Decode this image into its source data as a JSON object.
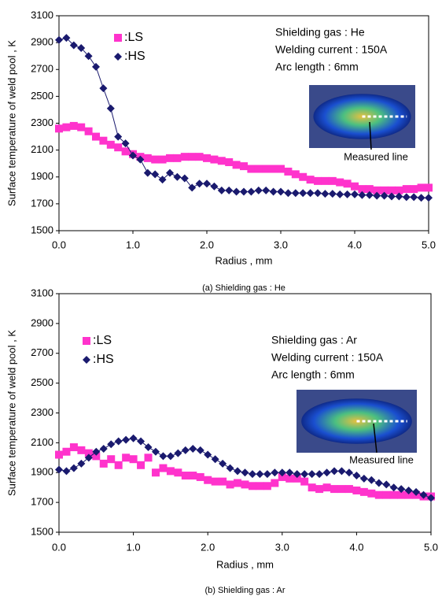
{
  "chart_data": [
    {
      "type": "scatter",
      "x_label": "Radius , mm",
      "y_label": "Surface temperature of weld pool , K",
      "caption": "(a) Shielding gas : He",
      "annotations": [
        "Shielding gas : He",
        "Welding current : 150A",
        "Arc length : 6mm"
      ],
      "inset_label": "Measured line",
      "legend": "upper left",
      "xlim": [
        0,
        5
      ],
      "ylim": [
        1500,
        3100
      ],
      "xticks": [
        {
          "value": 0,
          "label": "0.0"
        },
        {
          "value": 1,
          "label": "1.0"
        },
        {
          "value": 2,
          "label": "2.0"
        },
        {
          "value": 3,
          "label": "3.0"
        },
        {
          "value": 4,
          "label": "4.0"
        },
        {
          "value": 5,
          "label": "5.0"
        }
      ],
      "yticks": [
        1500,
        1700,
        1900,
        2100,
        2300,
        2500,
        2700,
        2900,
        3100
      ],
      "x": [
        0,
        0.1,
        0.2,
        0.3,
        0.4,
        0.5,
        0.6,
        0.7,
        0.8,
        0.9,
        1,
        1.1,
        1.2,
        1.3,
        1.4,
        1.5,
        1.6,
        1.7,
        1.8,
        1.9,
        2,
        2.1,
        2.2,
        2.3,
        2.4,
        2.5,
        2.6,
        2.7,
        2.8,
        2.9,
        3,
        3.1,
        3.2,
        3.3,
        3.4,
        3.5,
        3.6,
        3.7,
        3.8,
        3.9,
        4,
        4.1,
        4.2,
        4.3,
        4.4,
        4.5,
        4.6,
        4.7,
        4.8,
        4.9,
        5
      ],
      "series": [
        {
          "name": ":LS",
          "color": "#ff33cc",
          "marker": "square",
          "connect": false,
          "values": [
            2260,
            2270,
            2280,
            2270,
            2240,
            2200,
            2170,
            2140,
            2120,
            2090,
            2070,
            2050,
            2040,
            2030,
            2030,
            2040,
            2040,
            2050,
            2050,
            2050,
            2040,
            2030,
            2020,
            2010,
            1990,
            1980,
            1960,
            1960,
            1960,
            1960,
            1960,
            1940,
            1920,
            1900,
            1880,
            1870,
            1870,
            1870,
            1860,
            1850,
            1830,
            1810,
            1810,
            1800,
            1800,
            1800,
            1800,
            1810,
            1810,
            1820,
            1820
          ]
        },
        {
          "name": ":HS",
          "color": "#1a1a6e",
          "marker": "diamond",
          "connect": true,
          "values": [
            2920,
            2935,
            2880,
            2860,
            2800,
            2720,
            2560,
            2410,
            2200,
            2150,
            2060,
            2030,
            1930,
            1920,
            1880,
            1930,
            1900,
            1890,
            1820,
            1850,
            1850,
            1830,
            1800,
            1800,
            1790,
            1790,
            1790,
            1800,
            1800,
            1790,
            1790,
            1780,
            1780,
            1780,
            1780,
            1780,
            1775,
            1775,
            1770,
            1770,
            1770,
            1765,
            1765,
            1760,
            1760,
            1755,
            1755,
            1750,
            1750,
            1745,
            1745
          ]
        }
      ]
    },
    {
      "type": "scatter",
      "x_label": "Radius , mm",
      "y_label": "Surface temperature of weld pool , K",
      "caption": "(b) Shielding gas : Ar",
      "annotations": [
        "Shielding gas : Ar",
        "Welding current : 150A",
        "Arc length : 6mm"
      ],
      "inset_label": "Measured line",
      "legend": "upper left",
      "xlim": [
        0,
        5
      ],
      "ylim": [
        1500,
        3100
      ],
      "xticks": [
        {
          "value": 0,
          "label": "0.0"
        },
        {
          "value": 1,
          "label": "1.0"
        },
        {
          "value": 2,
          "label": "2.0"
        },
        {
          "value": 3,
          "label": "3.0"
        },
        {
          "value": 4,
          "label": "4.0"
        },
        {
          "value": 5,
          "label": "5.0"
        }
      ],
      "yticks": [
        1500,
        1700,
        1900,
        2100,
        2300,
        2500,
        2700,
        2900,
        3100
      ],
      "x": [
        0,
        0.1,
        0.2,
        0.3,
        0.4,
        0.5,
        0.6,
        0.7,
        0.8,
        0.9,
        1,
        1.1,
        1.2,
        1.3,
        1.4,
        1.5,
        1.6,
        1.7,
        1.8,
        1.9,
        2,
        2.1,
        2.2,
        2.3,
        2.4,
        2.5,
        2.6,
        2.7,
        2.8,
        2.9,
        3,
        3.1,
        3.2,
        3.3,
        3.4,
        3.5,
        3.6,
        3.7,
        3.8,
        3.9,
        4,
        4.1,
        4.2,
        4.3,
        4.4,
        4.5,
        4.6,
        4.7,
        4.8,
        4.9,
        5
      ],
      "series": [
        {
          "name": ":LS",
          "color": "#ff33cc",
          "marker": "square",
          "connect": false,
          "values": [
            2020,
            2040,
            2070,
            2050,
            2030,
            2010,
            1960,
            1990,
            1950,
            2000,
            1990,
            1950,
            2000,
            1900,
            1930,
            1910,
            1900,
            1880,
            1880,
            1870,
            1850,
            1840,
            1840,
            1820,
            1830,
            1820,
            1810,
            1810,
            1810,
            1830,
            1870,
            1860,
            1860,
            1840,
            1800,
            1790,
            1800,
            1790,
            1790,
            1790,
            1780,
            1770,
            1760,
            1750,
            1750,
            1750,
            1750,
            1750,
            1750,
            1740,
            1740
          ]
        },
        {
          "name": ":HS",
          "color": "#1a1a6e",
          "marker": "diamond",
          "connect": true,
          "values": [
            1920,
            1910,
            1930,
            1960,
            2000,
            2040,
            2060,
            2090,
            2110,
            2120,
            2130,
            2110,
            2070,
            2040,
            2010,
            2010,
            2030,
            2050,
            2060,
            2050,
            2020,
            1990,
            1960,
            1930,
            1910,
            1900,
            1890,
            1890,
            1890,
            1900,
            1900,
            1900,
            1890,
            1890,
            1890,
            1890,
            1900,
            1910,
            1910,
            1900,
            1880,
            1860,
            1850,
            1830,
            1820,
            1800,
            1790,
            1780,
            1770,
            1750,
            1730
          ]
        }
      ]
    }
  ]
}
